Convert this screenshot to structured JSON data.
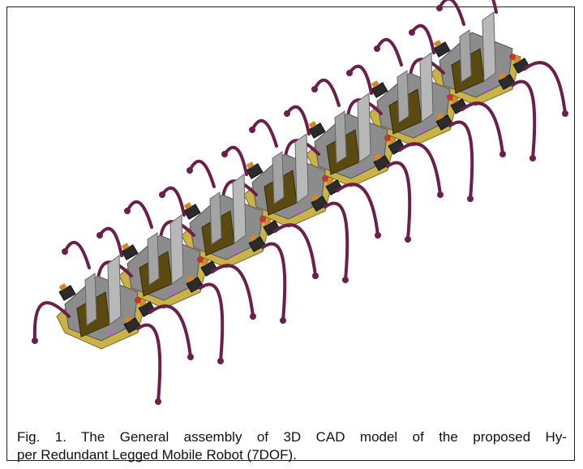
{
  "figure": {
    "caption": {
      "lines": [
        "Fig. 1. The General assembly of 3D CAD model of the proposed Hy-",
        "per Redundant Legged Mobile Robot (7DOF)."
      ]
    }
  }
}
